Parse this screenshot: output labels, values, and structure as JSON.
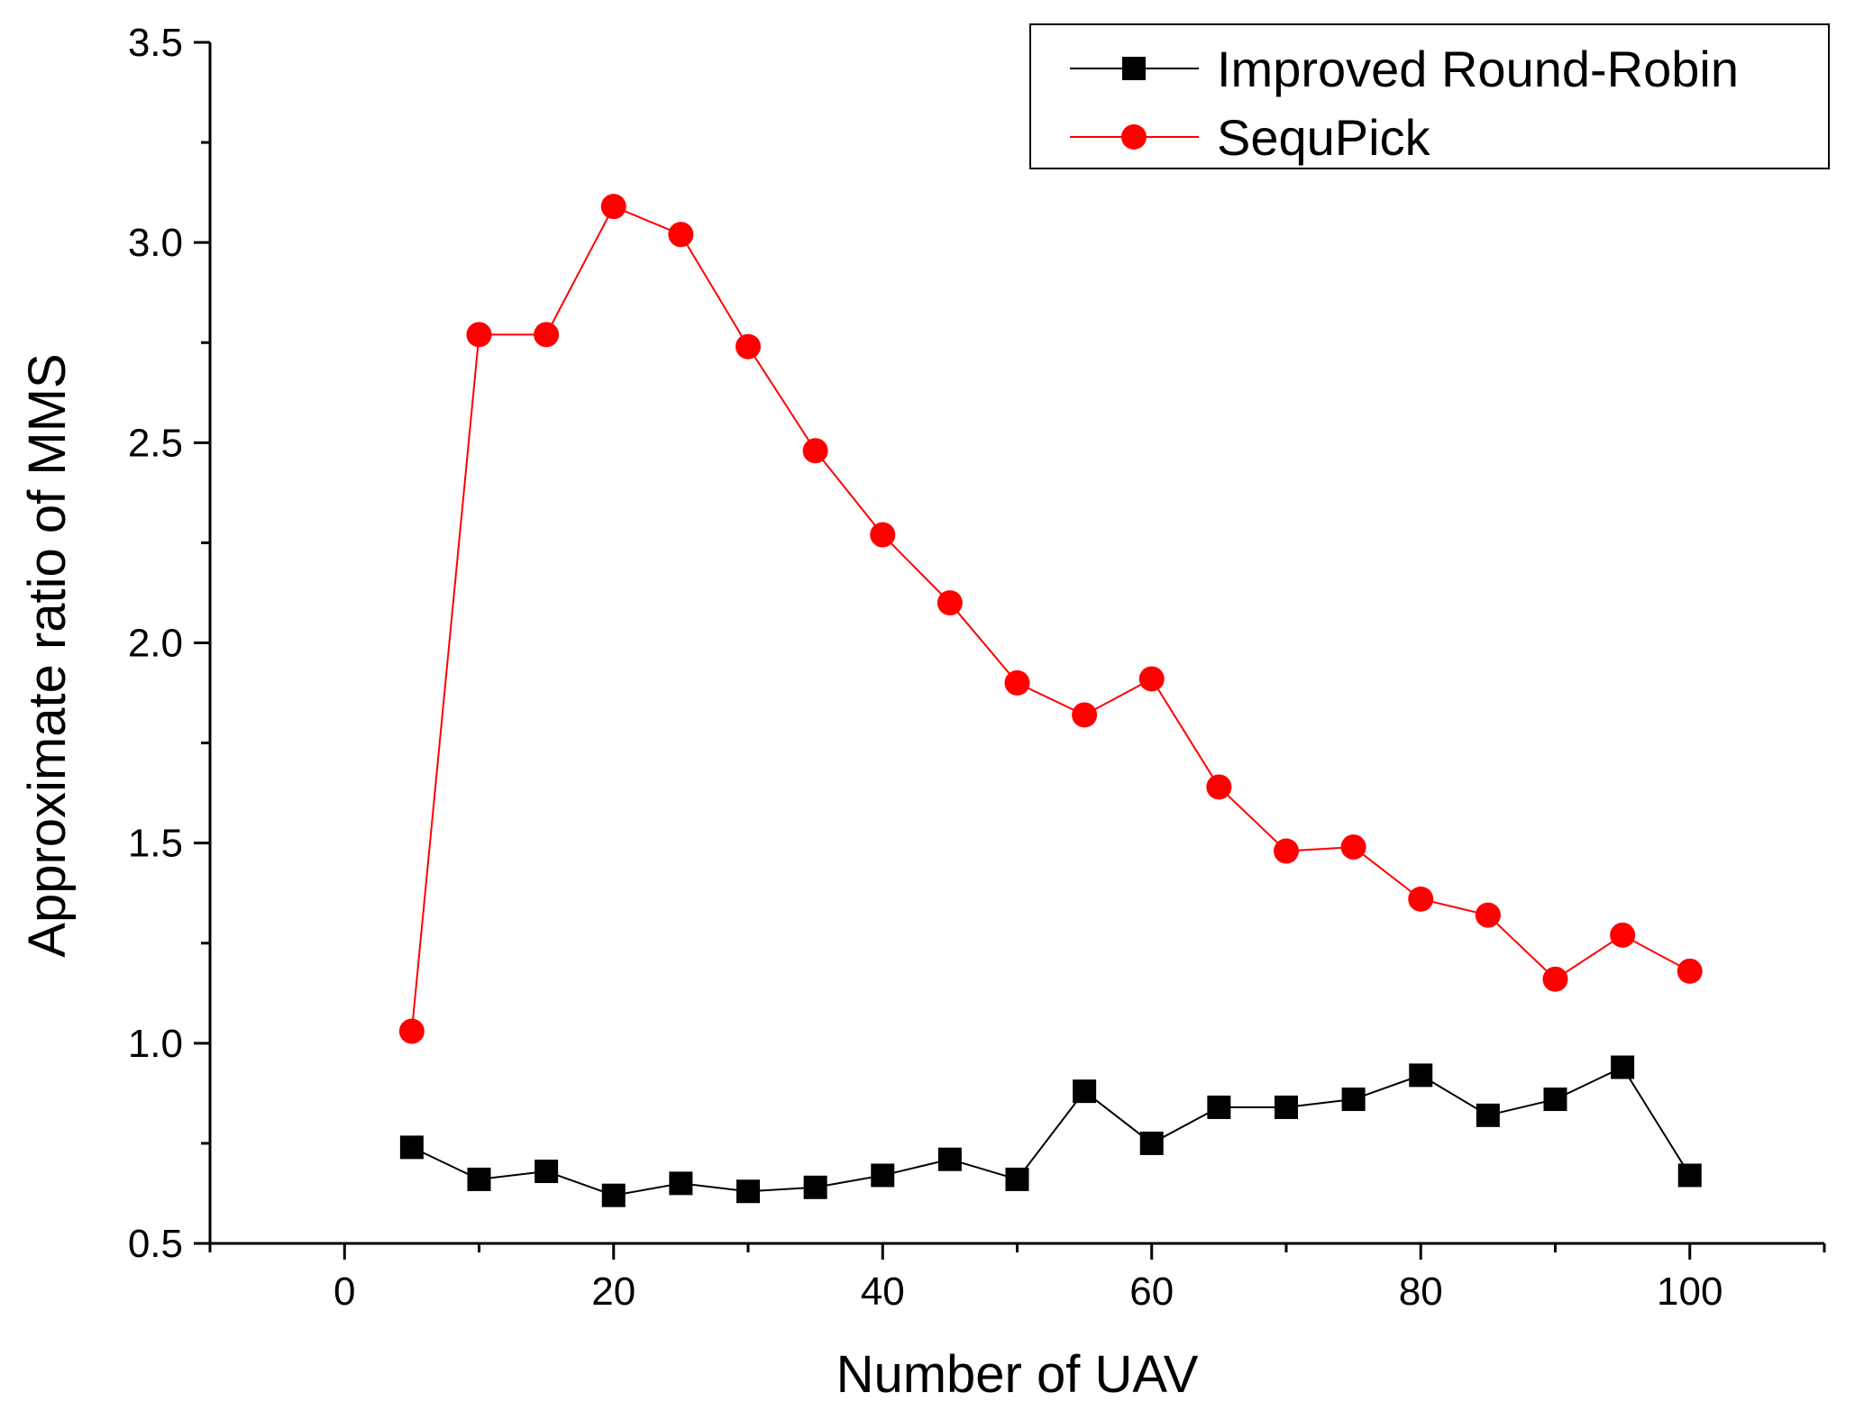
{
  "chart_data": {
    "type": "line",
    "title": "",
    "xlabel": "Number of UAV",
    "ylabel": "Approximate ratio of MMS",
    "xlim": [
      -10,
      110
    ],
    "ylim": [
      0.5,
      3.5
    ],
    "xticks": [
      0,
      20,
      40,
      60,
      80,
      100
    ],
    "xtick_labels": [
      "0",
      "20",
      "40",
      "60",
      "80",
      "100"
    ],
    "yticks": [
      0.5,
      1.0,
      1.5,
      2.0,
      2.5,
      3.0,
      3.5
    ],
    "ytick_labels": [
      "0.5",
      "1.0",
      "1.5",
      "2.0",
      "2.5",
      "3.0",
      "3.5"
    ],
    "grid": false,
    "legend_position": "top-right",
    "x": [
      5,
      10,
      15,
      20,
      25,
      30,
      35,
      40,
      45,
      50,
      55,
      60,
      65,
      70,
      75,
      80,
      85,
      90,
      95,
      100
    ],
    "series": [
      {
        "name": "Improved Round-Robin",
        "color": "#000000",
        "marker": "square",
        "values": [
          0.74,
          0.66,
          0.68,
          0.62,
          0.65,
          0.63,
          0.64,
          0.67,
          0.71,
          0.66,
          0.88,
          0.75,
          0.84,
          0.84,
          0.86,
          0.92,
          0.82,
          0.86,
          0.94,
          0.67
        ]
      },
      {
        "name": "SequPick",
        "color": "#ff0000",
        "marker": "circle",
        "values": [
          1.03,
          2.77,
          2.77,
          3.09,
          3.02,
          2.74,
          2.48,
          2.27,
          2.1,
          1.9,
          1.82,
          1.91,
          1.64,
          1.48,
          1.49,
          1.36,
          1.32,
          1.16,
          1.27,
          1.18
        ]
      }
    ]
  }
}
